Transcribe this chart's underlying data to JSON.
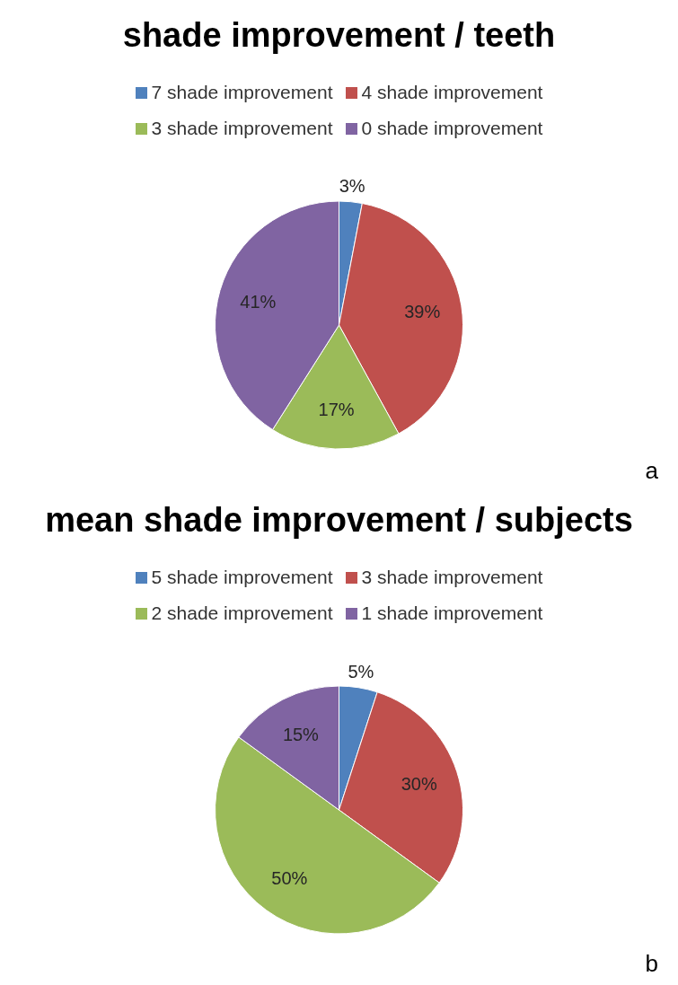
{
  "chart_data": [
    {
      "type": "pie",
      "title": "shade improvement / teeth",
      "categories": [
        "7 shade improvement",
        "4 shade improvement",
        "3 shade improvement",
        "0 shade improvement"
      ],
      "values": [
        3,
        39,
        17,
        41
      ],
      "colors": [
        "#4f81bd",
        "#c0504d",
        "#9bbb59",
        "#8064a2"
      ],
      "value_labels": [
        "3%",
        "39%",
        "17%",
        "41%"
      ],
      "legend": "top",
      "annotations": [
        "a"
      ]
    },
    {
      "type": "pie",
      "title": "mean shade improvement / subjects",
      "categories": [
        "5 shade improvement",
        "3 shade improvement",
        "2 shade improvement",
        "1 shade improvement"
      ],
      "values": [
        5,
        30,
        50,
        15
      ],
      "colors": [
        "#4f81bd",
        "#c0504d",
        "#9bbb59",
        "#8064a2"
      ],
      "value_labels": [
        "5%",
        "30%",
        "50%",
        "15%"
      ],
      "legend": "top",
      "annotations": [
        "b"
      ]
    }
  ]
}
